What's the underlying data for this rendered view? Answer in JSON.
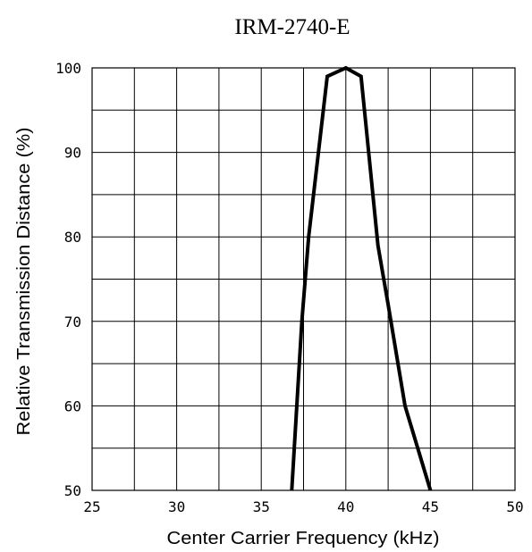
{
  "chart_data": {
    "type": "line",
    "title": "IRM-2740-E",
    "xlabel": "Center Carrier Frequency  (kHz)",
    "ylabel": "Relative Transmission Distance (%)",
    "xlim": [
      25,
      50
    ],
    "ylim": [
      50,
      100
    ],
    "x_ticks": [
      25,
      30,
      35,
      40,
      45,
      50
    ],
    "y_ticks": [
      50,
      60,
      70,
      80,
      90,
      100
    ],
    "x_tick_labels": [
      "25",
      "30",
      "35",
      "40",
      "45",
      "50"
    ],
    "y_tick_labels": [
      "50",
      "60",
      "70",
      "80",
      "90",
      "100"
    ],
    "x_grid_step": 2.5,
    "y_grid_step": 5,
    "grid": true,
    "legend": "none",
    "series": [
      {
        "values": [
          {
            "x": 36.8,
            "y": 50
          },
          {
            "x": 37.4,
            "y": 70
          },
          {
            "x": 37.8,
            "y": 80
          },
          {
            "x": 38.9,
            "y": 99
          },
          {
            "x": 40.0,
            "y": 100
          },
          {
            "x": 40.9,
            "y": 99
          },
          {
            "x": 41.2,
            "y": 93
          },
          {
            "x": 41.9,
            "y": 79
          },
          {
            "x": 42.5,
            "y": 72
          },
          {
            "x": 43.5,
            "y": 60
          },
          {
            "x": 45.0,
            "y": 50
          }
        ]
      }
    ]
  }
}
